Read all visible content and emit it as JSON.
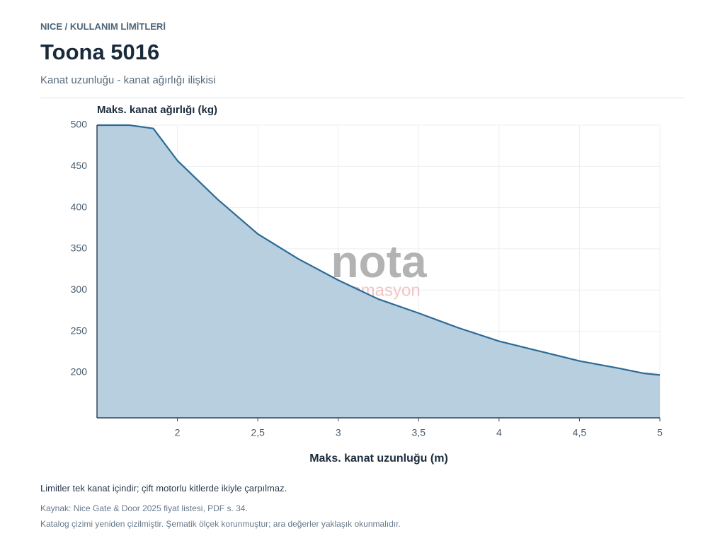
{
  "header": {
    "eyebrow": "NICE / KULLANIM LİMİTLERİ",
    "title": "Toona 5016",
    "subtitle": "Kanat uzunluğu - kanat ağırlığı ilişkisi"
  },
  "chart_data": {
    "type": "area",
    "y_label": "Maks. kanat ağırlığı (kg)",
    "x_label": "Maks. kanat uzunluğu (m)",
    "x": [
      1.5,
      1.7,
      1.85,
      2,
      2.25,
      2.5,
      2.75,
      3,
      3.25,
      3.5,
      3.75,
      4,
      4.25,
      4.5,
      4.75,
      4.9,
      5
    ],
    "values": [
      500,
      500,
      496,
      457,
      410,
      368,
      338,
      312,
      289,
      272,
      254,
      238,
      226,
      214,
      205,
      199,
      197
    ],
    "color": "#2d6a96",
    "fill_color": "#b7cfdf",
    "xlim": [
      1.5,
      5
    ],
    "ylim": [
      145,
      500
    ],
    "xticks": [
      2,
      {
        "value": 2.5,
        "label": "2,5"
      },
      3,
      {
        "value": 3.5,
        "label": "3,5"
      },
      4,
      {
        "value": 4.5,
        "label": "4,5"
      },
      5
    ],
    "yticks": [
      200,
      250,
      300,
      350,
      400,
      450,
      500
    ],
    "grid": true,
    "watermark": {
      "text": "nota",
      "subtext": "otomasyon"
    }
  },
  "footer": {
    "note": "Limitler tek kanat içindir; çift motorlu kitlerde ikiyle çarpılmaz.",
    "source": "Kaynak: Nice Gate & Door 2025 fiyat listesi, PDF s. 34.",
    "disclaimer": "Katalog çizimi yeniden çizilmiştir. Şematik ölçek korunmuştur; ara değerler yaklaşık okunmalıdır."
  }
}
